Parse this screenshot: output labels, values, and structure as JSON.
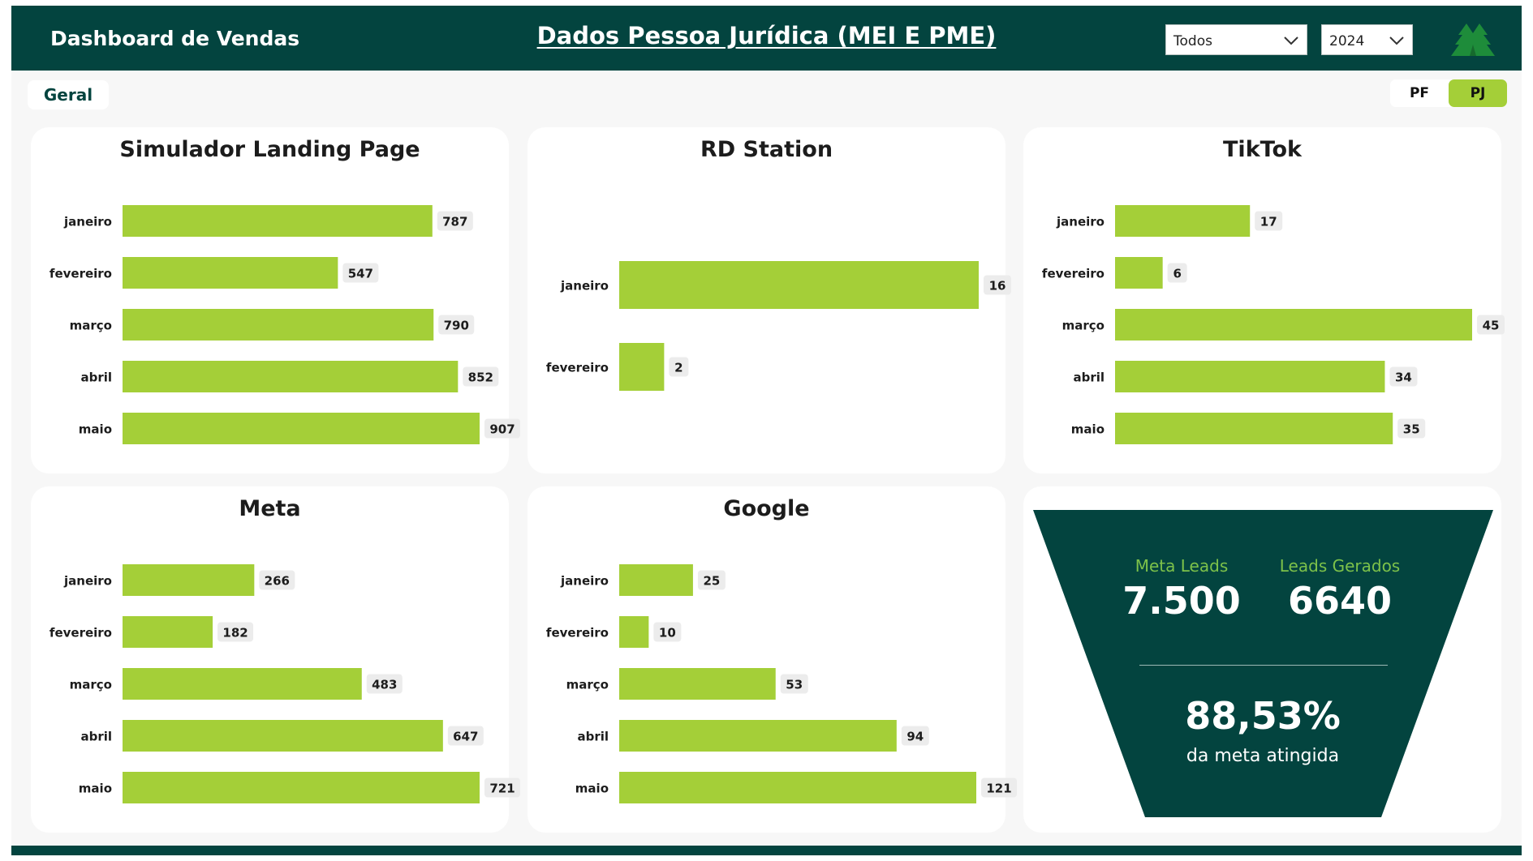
{
  "header": {
    "brand": "Dashboard de Vendas",
    "title": "Dados Pessoa Jurídica (MEI E PME)",
    "filter_segment": "Todos",
    "filter_year": "2024"
  },
  "tabs": {
    "geral": "Geral"
  },
  "person_toggle": {
    "pf": "PF",
    "pj": "PJ",
    "active": "PJ"
  },
  "colors": {
    "primary": "#03443f",
    "accent": "#a4cf38",
    "accent_text": "#7dc24a"
  },
  "icons": {
    "dropdown": "chevron-down-icon",
    "logo": "tree-logo-icon"
  },
  "charts": [
    {
      "id": "simulador",
      "title": "Simulador Landing Page",
      "type": "bar",
      "orientation": "horizontal",
      "categories": [
        "janeiro",
        "fevereiro",
        "março",
        "abril",
        "maio"
      ],
      "values": [
        787,
        547,
        790,
        852,
        907
      ],
      "xmax": 907
    },
    {
      "id": "rdstation",
      "title": "RD Station",
      "type": "bar",
      "orientation": "horizontal",
      "categories": [
        "janeiro",
        "fevereiro"
      ],
      "values": [
        16,
        2
      ],
      "xmax": 16
    },
    {
      "id": "tiktok",
      "title": "TikTok",
      "type": "bar",
      "orientation": "horizontal",
      "categories": [
        "janeiro",
        "fevereiro",
        "março",
        "abril",
        "maio"
      ],
      "values": [
        17,
        6,
        45,
        34,
        35
      ],
      "xmax": 45
    },
    {
      "id": "meta",
      "title": "Meta",
      "type": "bar",
      "orientation": "horizontal",
      "categories": [
        "janeiro",
        "fevereiro",
        "março",
        "abril",
        "maio"
      ],
      "values": [
        266,
        182,
        483,
        647,
        721
      ],
      "xmax": 721
    },
    {
      "id": "google",
      "title": "Google",
      "type": "bar",
      "orientation": "horizontal",
      "categories": [
        "janeiro",
        "fevereiro",
        "março",
        "abril",
        "maio"
      ],
      "values": [
        25,
        10,
        53,
        94,
        121
      ],
      "xmax": 121
    }
  ],
  "kpi": {
    "meta_label": "Meta Leads",
    "meta_value": "7.500",
    "gerados_label": "Leads Gerados",
    "gerados_value": "6640",
    "percent": "88,53%",
    "percent_label": "da meta atingida"
  }
}
